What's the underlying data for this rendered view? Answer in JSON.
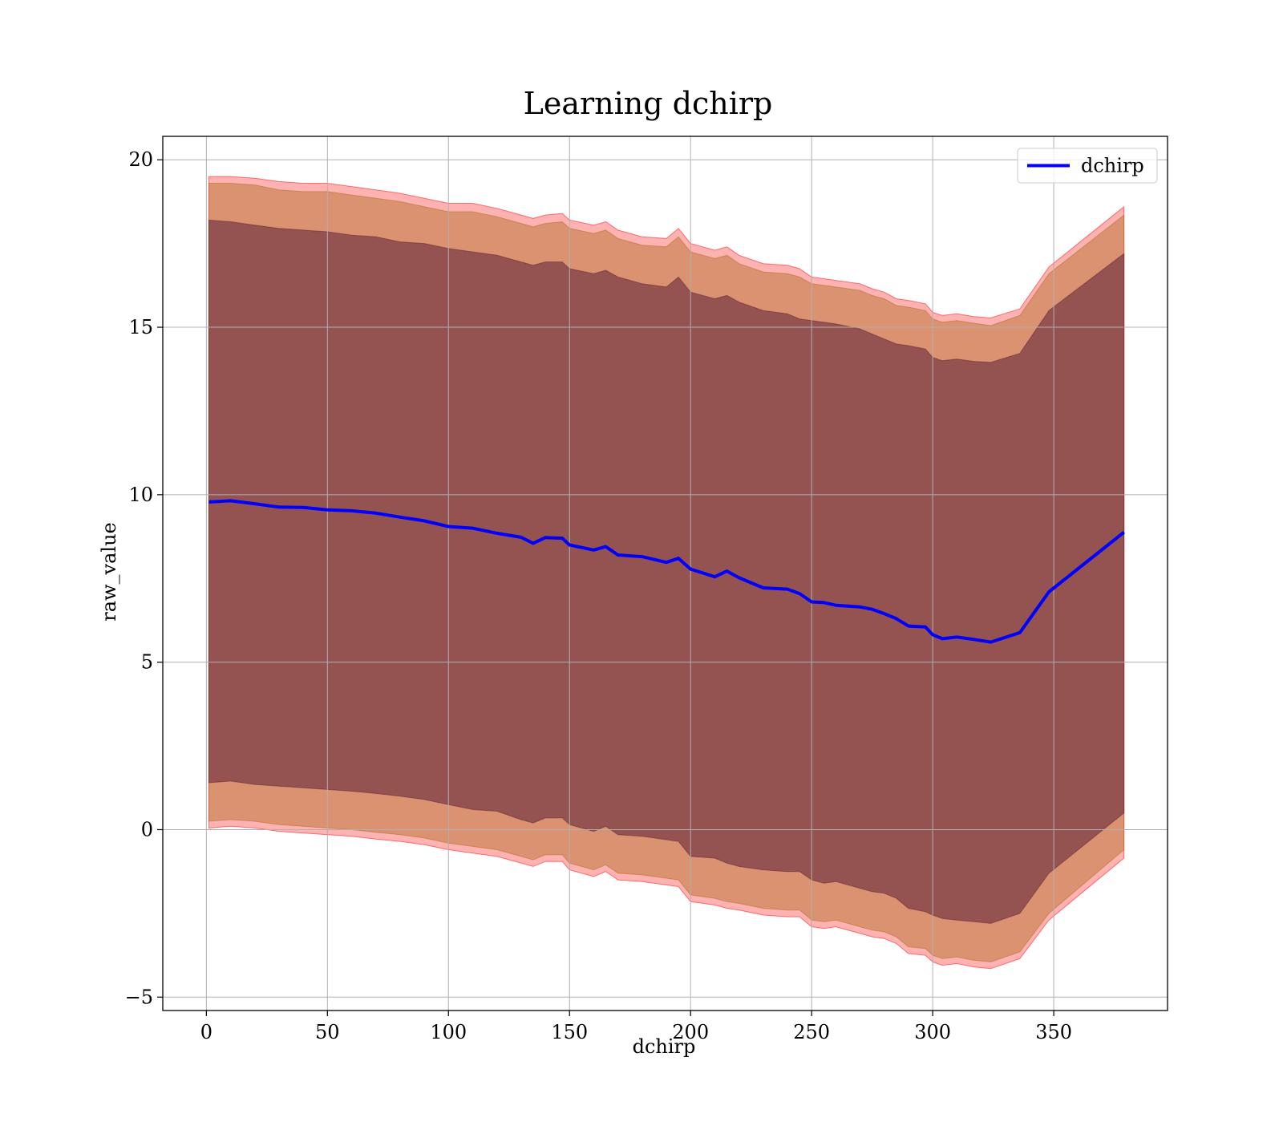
{
  "chart_data": {
    "type": "line",
    "title": "Learning dchirp",
    "xlabel": "dchirp",
    "ylabel": "raw_value",
    "xlim": [
      -18,
      397
    ],
    "ylim": [
      -5.4,
      20.7
    ],
    "xticks": [
      0,
      50,
      100,
      150,
      200,
      250,
      300,
      350
    ],
    "yticks": [
      -5,
      0,
      5,
      10,
      15,
      20
    ],
    "tick_labels_x": [
      "0",
      "50",
      "100",
      "150",
      "200",
      "250",
      "300",
      "350"
    ],
    "tick_labels_y": [
      "−5",
      "0",
      "5",
      "10",
      "15",
      "20"
    ],
    "grid": true,
    "legend": {
      "placement": "top-right",
      "entries": [
        "dchirp"
      ]
    },
    "colors": {
      "line": "#0000ff",
      "band_outer": "#ff0000",
      "band_middle": "#b06a20",
      "band_inner": "#5a1f36"
    },
    "x": [
      1,
      10,
      20,
      30,
      40,
      50,
      60,
      70,
      80,
      90,
      100,
      110,
      120,
      130,
      135,
      140,
      147,
      150,
      160,
      165,
      170,
      180,
      190,
      195,
      200,
      210,
      215,
      220,
      230,
      240,
      245,
      250,
      255,
      260,
      270,
      275,
      280,
      285,
      290,
      297,
      300,
      304,
      310,
      317,
      324,
      336,
      348,
      379
    ],
    "series": [
      {
        "name": "dchirp",
        "values": [
          9.78,
          9.82,
          9.73,
          9.63,
          9.62,
          9.55,
          9.52,
          9.45,
          9.33,
          9.22,
          9.05,
          9.0,
          8.85,
          8.73,
          8.55,
          8.72,
          8.7,
          8.5,
          8.35,
          8.45,
          8.2,
          8.15,
          7.98,
          8.1,
          7.78,
          7.55,
          7.72,
          7.52,
          7.22,
          7.18,
          7.05,
          6.8,
          6.78,
          6.7,
          6.65,
          6.58,
          6.45,
          6.3,
          6.08,
          6.05,
          5.82,
          5.7,
          5.75,
          5.68,
          5.6,
          5.88,
          7.1,
          8.88
        ]
      },
      {
        "name": "",
        "values": [
          18.2,
          18.15,
          18.05,
          17.95,
          17.9,
          17.85,
          17.75,
          17.7,
          17.55,
          17.5,
          17.35,
          17.25,
          17.15,
          16.95,
          16.85,
          16.95,
          16.95,
          16.75,
          16.6,
          16.7,
          16.5,
          16.3,
          16.2,
          16.5,
          16.05,
          15.85,
          15.95,
          15.75,
          15.5,
          15.4,
          15.25,
          15.2,
          15.15,
          15.1,
          14.95,
          14.8,
          14.65,
          14.5,
          14.45,
          14.35,
          14.1,
          14.0,
          14.05,
          13.98,
          13.95,
          14.22,
          15.5,
          17.2
        ]
      },
      {
        "name": "",
        "values": [
          1.4,
          1.45,
          1.35,
          1.3,
          1.25,
          1.2,
          1.15,
          1.08,
          1.0,
          0.9,
          0.75,
          0.6,
          0.55,
          0.3,
          0.2,
          0.35,
          0.35,
          0.15,
          -0.05,
          0.1,
          -0.15,
          -0.2,
          -0.3,
          -0.35,
          -0.8,
          -0.85,
          -1.0,
          -1.1,
          -1.2,
          -1.25,
          -1.25,
          -1.5,
          -1.6,
          -1.55,
          -1.75,
          -1.85,
          -1.9,
          -2.05,
          -2.35,
          -2.45,
          -2.55,
          -2.65,
          -2.7,
          -2.75,
          -2.8,
          -2.5,
          -1.3,
          0.5
        ]
      },
      {
        "name": "",
        "values": [
          19.3,
          19.3,
          19.25,
          19.1,
          19.05,
          19.05,
          18.95,
          18.85,
          18.75,
          18.6,
          18.45,
          18.45,
          18.3,
          18.1,
          18.0,
          18.1,
          18.15,
          17.95,
          17.8,
          17.9,
          17.65,
          17.45,
          17.4,
          17.7,
          17.25,
          17.05,
          17.15,
          16.9,
          16.65,
          16.6,
          16.5,
          16.3,
          16.25,
          16.2,
          16.1,
          15.95,
          15.85,
          15.65,
          15.6,
          15.5,
          15.25,
          15.15,
          15.2,
          15.12,
          15.05,
          15.35,
          16.6,
          18.35
        ]
      },
      {
        "name": "",
        "values": [
          0.25,
          0.3,
          0.25,
          0.15,
          0.1,
          0.05,
          0.0,
          -0.08,
          -0.15,
          -0.25,
          -0.4,
          -0.5,
          -0.6,
          -0.8,
          -0.9,
          -0.75,
          -0.75,
          -1.0,
          -1.2,
          -1.05,
          -1.3,
          -1.35,
          -1.45,
          -1.5,
          -1.95,
          -2.05,
          -2.15,
          -2.2,
          -2.35,
          -2.4,
          -2.4,
          -2.7,
          -2.75,
          -2.7,
          -2.9,
          -3.0,
          -3.05,
          -3.2,
          -3.5,
          -3.55,
          -3.75,
          -3.85,
          -3.8,
          -3.9,
          -3.95,
          -3.65,
          -2.5,
          -0.6
        ]
      },
      {
        "name": "",
        "values": [
          19.5,
          19.5,
          19.45,
          19.35,
          19.3,
          19.3,
          19.2,
          19.1,
          19.0,
          18.85,
          18.7,
          18.7,
          18.55,
          18.35,
          18.25,
          18.35,
          18.4,
          18.2,
          18.05,
          18.15,
          17.9,
          17.7,
          17.65,
          17.95,
          17.5,
          17.3,
          17.4,
          17.15,
          16.9,
          16.85,
          16.75,
          16.5,
          16.45,
          16.4,
          16.3,
          16.15,
          16.05,
          15.85,
          15.8,
          15.7,
          15.45,
          15.35,
          15.4,
          15.32,
          15.28,
          15.55,
          16.8,
          18.6
        ]
      },
      {
        "name": "",
        "values": [
          0.05,
          0.1,
          0.05,
          -0.05,
          -0.1,
          -0.15,
          -0.2,
          -0.28,
          -0.35,
          -0.45,
          -0.6,
          -0.7,
          -0.8,
          -1.0,
          -1.1,
          -0.95,
          -0.95,
          -1.2,
          -1.4,
          -1.25,
          -1.5,
          -1.55,
          -1.65,
          -1.7,
          -2.15,
          -2.25,
          -2.35,
          -2.4,
          -2.55,
          -2.6,
          -2.6,
          -2.9,
          -2.95,
          -2.9,
          -3.1,
          -3.2,
          -3.25,
          -3.4,
          -3.7,
          -3.75,
          -3.95,
          -4.05,
          -4.0,
          -4.1,
          -4.15,
          -3.85,
          -2.7,
          -0.85
        ]
      }
    ]
  }
}
